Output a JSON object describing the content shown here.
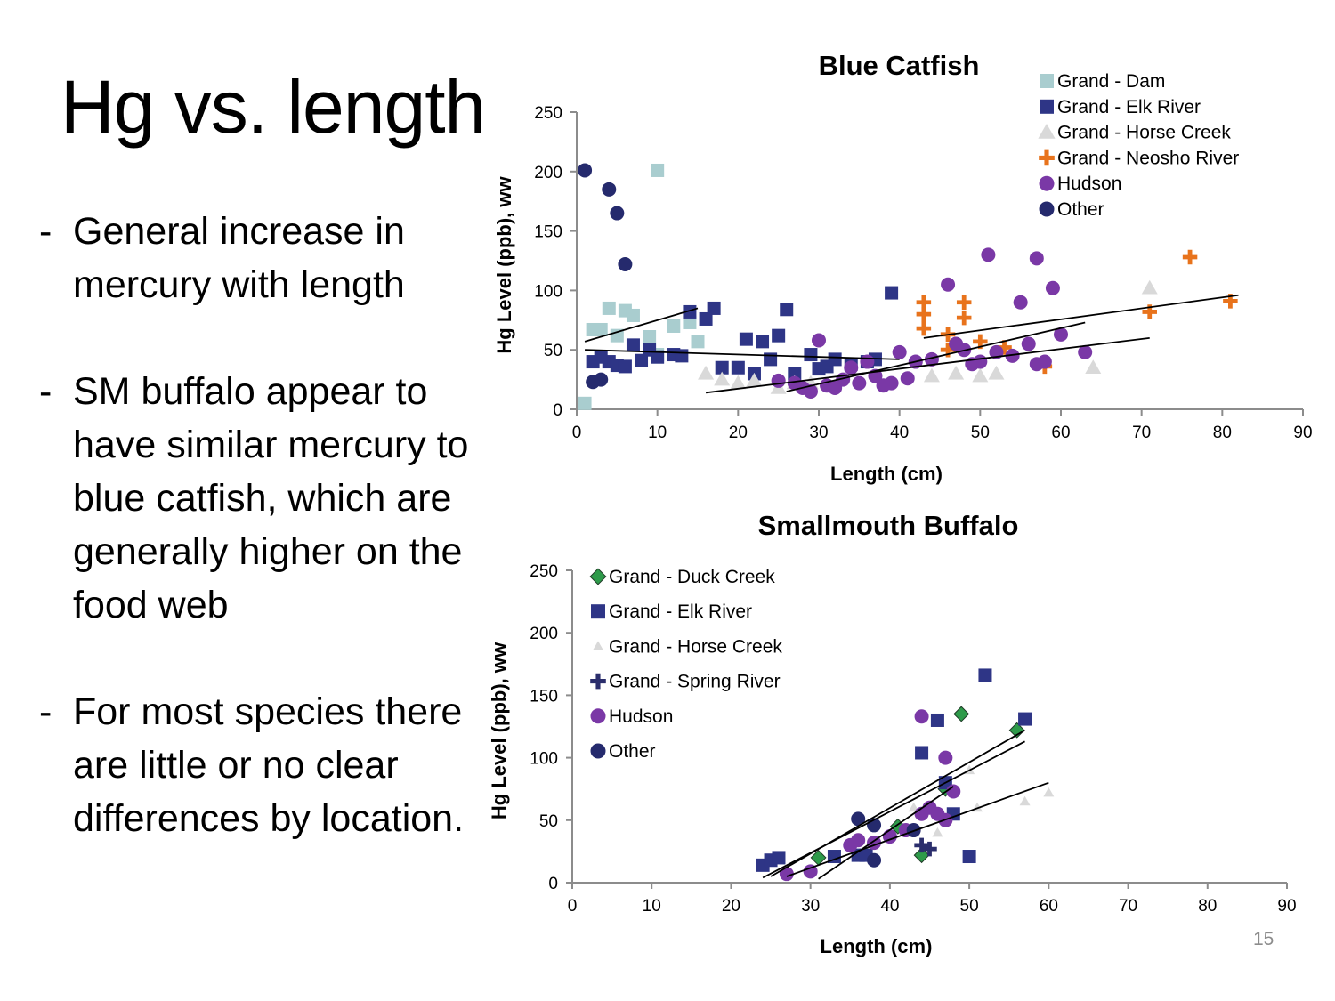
{
  "slide": {
    "title": "Hg vs. length",
    "bullets": [
      {
        "dash": "-",
        "text": "General increase in mercury with length"
      },
      {
        "dash": "-",
        "text": "SM buffalo appear to have similar mercury to blue catfish, which are generally higher on the food web"
      },
      {
        "dash": "-",
        "text": "For most species there are little or no clear differences by location."
      }
    ],
    "page_number": "15"
  },
  "colors": {
    "grand_dam": "#a9cdcf",
    "elk_river": "#2e3586",
    "horse_creek": "#d9d9d9",
    "neosho_river": "#e8731c",
    "hudson": "#7a38a6",
    "other": "#252a6d",
    "duck_creek": "#2e9a4a",
    "spring_river": "#2b2e6c",
    "axis": "#8c8c8c",
    "trendline": "#000000"
  },
  "chart_data": [
    {
      "type": "scatter",
      "title": "Blue Catfish",
      "xlabel": "Length (cm)",
      "ylabel": "Hg Level (ppb), ww",
      "xlim": [
        0,
        90
      ],
      "ylim": [
        0,
        250
      ],
      "xticks": [
        0,
        10,
        20,
        30,
        40,
        50,
        60,
        70,
        80,
        90
      ],
      "yticks": [
        0,
        50,
        100,
        150,
        200,
        250
      ],
      "grid": false,
      "legend": "top-right",
      "series": [
        {
          "name": "Grand - Dam",
          "marker": "square",
          "color": "#a9cdcf",
          "points": [
            [
              10,
              201
            ],
            [
              4,
              85
            ],
            [
              6,
              83
            ],
            [
              3,
              67
            ],
            [
              2,
              67
            ],
            [
              5,
              62
            ],
            [
              7,
              79
            ],
            [
              9,
              61
            ],
            [
              12,
              70
            ],
            [
              14,
              73
            ],
            [
              15,
              57
            ],
            [
              10,
              46
            ],
            [
              1,
              5
            ]
          ],
          "trend": [
            [
              1,
              57
            ],
            [
              15,
              85
            ]
          ]
        },
        {
          "name": "Grand - Elk River",
          "marker": "square",
          "color": "#2e3586",
          "points": [
            [
              2,
              40
            ],
            [
              4,
              40
            ],
            [
              3,
              44
            ],
            [
              5,
              37
            ],
            [
              6,
              36
            ],
            [
              7,
              54
            ],
            [
              9,
              50
            ],
            [
              10,
              44
            ],
            [
              8,
              41
            ],
            [
              12,
              46
            ],
            [
              13,
              45
            ],
            [
              14,
              82
            ],
            [
              16,
              76
            ],
            [
              17,
              85
            ],
            [
              18,
              35
            ],
            [
              20,
              35
            ],
            [
              21,
              59
            ],
            [
              22,
              30
            ],
            [
              23,
              57
            ],
            [
              24,
              42
            ],
            [
              25,
              62
            ],
            [
              26,
              84
            ],
            [
              27,
              30
            ],
            [
              29,
              46
            ],
            [
              30,
              34
            ],
            [
              31,
              36
            ],
            [
              32,
              42
            ],
            [
              34,
              38
            ],
            [
              36,
              40
            ],
            [
              37,
              42
            ],
            [
              39,
              98
            ]
          ],
          "trend": [
            [
              1,
              50
            ],
            [
              40,
              42
            ]
          ]
        },
        {
          "name": "Grand - Horse Creek",
          "marker": "triangle",
          "color": "#d9d9d9",
          "points": [
            [
              16,
              30
            ],
            [
              18,
              25
            ],
            [
              20,
              22
            ],
            [
              22,
              24
            ],
            [
              25,
              18
            ],
            [
              27,
              22
            ],
            [
              29,
              22
            ],
            [
              44,
              28
            ],
            [
              47,
              30
            ],
            [
              50,
              28
            ],
            [
              52,
              30
            ],
            [
              64,
              35
            ],
            [
              71,
              102
            ]
          ],
          "trend": [
            [
              16,
              14
            ],
            [
              71,
              60
            ]
          ]
        },
        {
          "name": "Grand - Neosho River",
          "marker": "plus",
          "color": "#e8731c",
          "points": [
            [
              43,
              90
            ],
            [
              43,
              80
            ],
            [
              43,
              68
            ],
            [
              46,
              63
            ],
            [
              46,
              50
            ],
            [
              48,
              90
            ],
            [
              48,
              77
            ],
            [
              50,
              57
            ],
            [
              53,
              52
            ],
            [
              58,
              36
            ],
            [
              71,
              82
            ],
            [
              76,
              128
            ],
            [
              81,
              91
            ]
          ],
          "trend": [
            [
              43,
              60
            ],
            [
              82,
              96
            ]
          ]
        },
        {
          "name": "Hudson",
          "marker": "circle",
          "color": "#7a38a6",
          "points": [
            [
              25,
              24
            ],
            [
              27,
              22
            ],
            [
              28,
              18
            ],
            [
              29,
              15
            ],
            [
              30,
              58
            ],
            [
              31,
              20
            ],
            [
              32,
              18
            ],
            [
              33,
              25
            ],
            [
              34,
              35
            ],
            [
              35,
              22
            ],
            [
              36,
              40
            ],
            [
              37,
              28
            ],
            [
              38,
              20
            ],
            [
              39,
              22
            ],
            [
              40,
              48
            ],
            [
              41,
              26
            ],
            [
              42,
              40
            ],
            [
              44,
              42
            ],
            [
              46,
              105
            ],
            [
              47,
              55
            ],
            [
              48,
              50
            ],
            [
              49,
              38
            ],
            [
              50,
              40
            ],
            [
              51,
              130
            ],
            [
              52,
              48
            ],
            [
              54,
              45
            ],
            [
              55,
              90
            ],
            [
              56,
              55
            ],
            [
              57,
              127
            ],
            [
              57,
              38
            ],
            [
              58,
              40
            ],
            [
              59,
              102
            ],
            [
              60,
              63
            ],
            [
              63,
              48
            ]
          ],
          "trend": [
            [
              26,
              15
            ],
            [
              63,
              73
            ]
          ]
        },
        {
          "name": "Other",
          "marker": "circle",
          "color": "#252a6d",
          "points": [
            [
              1,
              201
            ],
            [
              4,
              185
            ],
            [
              5,
              165
            ],
            [
              6,
              122
            ],
            [
              3,
              25
            ],
            [
              2,
              23
            ]
          ]
        }
      ]
    },
    {
      "type": "scatter",
      "title": "Smallmouth Buffalo",
      "xlabel": "Length (cm)",
      "ylabel": "Hg Level (ppb), ww",
      "xlim": [
        0,
        90
      ],
      "ylim": [
        0,
        250
      ],
      "xticks": [
        0,
        10,
        20,
        30,
        40,
        50,
        60,
        70,
        80,
        90
      ],
      "yticks": [
        0,
        50,
        100,
        150,
        200,
        250
      ],
      "grid": false,
      "legend": "top-left",
      "series": [
        {
          "name": "Grand - Duck Creek",
          "marker": "diamond",
          "color": "#2e9a4a",
          "points": [
            [
              31,
              20
            ],
            [
              41,
              45
            ],
            [
              44,
              22
            ],
            [
              47,
              75
            ],
            [
              49,
              135
            ],
            [
              56,
              122
            ]
          ],
          "trend": [
            [
              25,
              5
            ],
            [
              57,
              122
            ]
          ]
        },
        {
          "name": "Grand - Elk River",
          "marker": "square",
          "color": "#2e3586",
          "points": [
            [
              24,
              14
            ],
            [
              25,
              18
            ],
            [
              26,
              20
            ],
            [
              33,
              21
            ],
            [
              36,
              22
            ],
            [
              37,
              22
            ],
            [
              44,
              104
            ],
            [
              46,
              130
            ],
            [
              47,
              80
            ],
            [
              48,
              55
            ],
            [
              50,
              21
            ],
            [
              52,
              166
            ],
            [
              57,
              131
            ]
          ],
          "trend": [
            [
              24,
              4
            ],
            [
              57,
              113
            ]
          ]
        },
        {
          "name": "Grand - Horse Creek",
          "marker": "triangle",
          "color": "#d9d9d9",
          "points": [
            [
              43,
              60
            ],
            [
              46,
              40
            ],
            [
              50,
              90
            ],
            [
              51,
              60
            ],
            [
              57,
              65
            ],
            [
              60,
              72
            ]
          ],
          "trend": [
            [
              27,
              5
            ],
            [
              60,
              80
            ]
          ]
        },
        {
          "name": "Grand - Spring River",
          "marker": "plus",
          "color": "#2b2e6c",
          "points": [
            [
              44,
              30
            ],
            [
              45,
              27
            ]
          ]
        },
        {
          "name": "Hudson",
          "marker": "circle",
          "color": "#7a38a6",
          "points": [
            [
              27,
              7
            ],
            [
              30,
              9
            ],
            [
              35,
              30
            ],
            [
              36,
              34
            ],
            [
              38,
              32
            ],
            [
              40,
              37
            ],
            [
              42,
              42
            ],
            [
              44,
              133
            ],
            [
              44,
              55
            ],
            [
              45,
              60
            ],
            [
              46,
              55
            ],
            [
              47,
              100
            ],
            [
              47,
              50
            ],
            [
              48,
              73
            ]
          ],
          "trend": [
            [
              31,
              3
            ],
            [
              48,
              77
            ]
          ]
        },
        {
          "name": "Other",
          "marker": "circle",
          "color": "#252a6d",
          "points": [
            [
              36,
              51
            ],
            [
              38,
              46
            ],
            [
              38,
              18
            ],
            [
              43,
              42
            ]
          ]
        }
      ]
    }
  ]
}
